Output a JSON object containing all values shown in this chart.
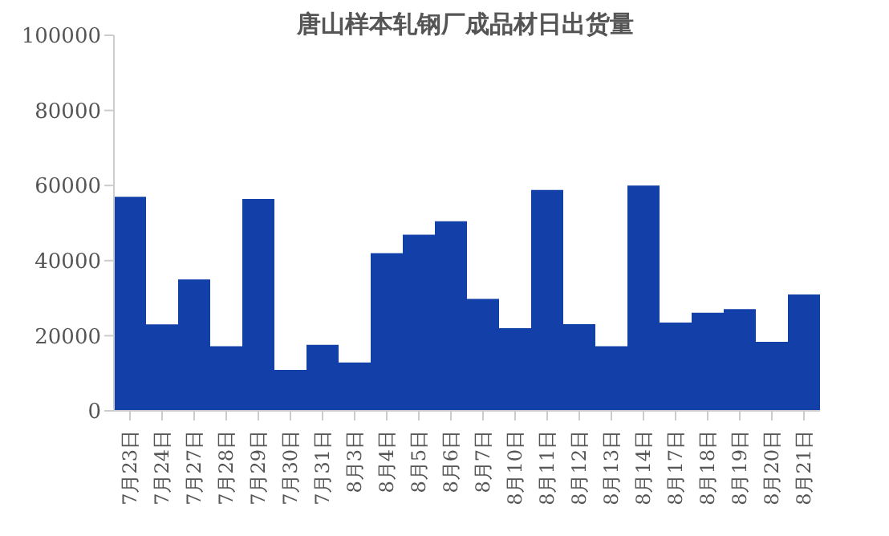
{
  "chart_data": {
    "type": "bar",
    "title": "唐山样本轧钢厂成品材日出货量",
    "categories": [
      "7月23日",
      "7月24日",
      "7月27日",
      "7月28日",
      "7月29日",
      "7月30日",
      "7月31日",
      "8月3日",
      "8月4日",
      "8月5日",
      "8月6日",
      "8月7日",
      "8月10日",
      "8月11日",
      "8月12日",
      "8月13日",
      "8月14日",
      "8月17日",
      "8月18日",
      "8月19日",
      "8月20日",
      "8月21日"
    ],
    "values": [
      57000,
      23000,
      35000,
      17200,
      56400,
      10900,
      17600,
      12900,
      42000,
      46900,
      50500,
      29800,
      22000,
      58800,
      23100,
      17200,
      60000,
      23500,
      26100,
      27100,
      18400,
      31000
    ],
    "color": "#1240a8",
    "ylim": [
      0,
      100000
    ],
    "yticks": [
      0,
      20000,
      40000,
      60000,
      80000,
      100000
    ],
    "grid": false,
    "legend": false
  }
}
